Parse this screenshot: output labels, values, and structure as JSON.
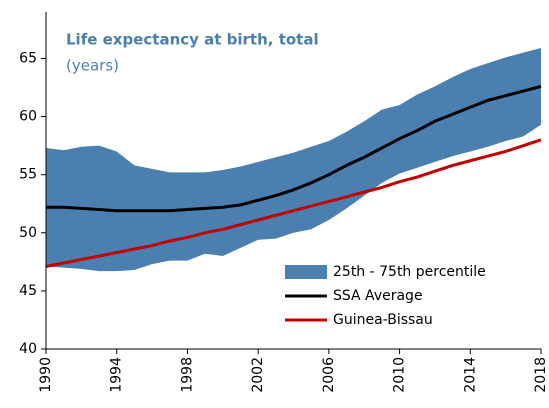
{
  "chart_data": {
    "type": "line",
    "title": "Life expectancy at birth, total",
    "subtitle": "(years)",
    "x": [
      1990,
      1991,
      1992,
      1993,
      1994,
      1995,
      1996,
      1997,
      1998,
      1999,
      2000,
      2001,
      2002,
      2003,
      2004,
      2005,
      2006,
      2007,
      2008,
      2009,
      2010,
      2011,
      2012,
      2013,
      2014,
      2015,
      2016,
      2017,
      2018
    ],
    "band": {
      "name": "25th - 75th percentile",
      "color": "#4a7fb0",
      "upper": [
        57.3,
        57.1,
        57.4,
        57.5,
        57.0,
        55.8,
        55.5,
        55.2,
        55.2,
        55.2,
        55.4,
        55.7,
        56.1,
        56.5,
        56.9,
        57.4,
        57.9,
        58.7,
        59.6,
        60.6,
        61.0,
        61.9,
        62.6,
        63.4,
        64.1,
        64.6,
        65.1,
        65.5,
        65.9
      ],
      "lower": [
        47.1,
        47.0,
        46.9,
        46.7,
        46.7,
        46.8,
        47.3,
        47.6,
        47.6,
        48.2,
        48.0,
        48.7,
        49.4,
        49.5,
        50.0,
        50.3,
        51.1,
        52.1,
        53.2,
        54.3,
        55.1,
        55.6,
        56.1,
        56.6,
        57.0,
        57.4,
        57.9,
        58.3,
        59.3
      ]
    },
    "series": [
      {
        "name": "SSA Average",
        "color": "#000000",
        "values": [
          52.2,
          52.2,
          52.1,
          52.0,
          51.9,
          51.9,
          51.9,
          51.9,
          52.0,
          52.1,
          52.2,
          52.4,
          52.8,
          53.2,
          53.7,
          54.3,
          55.0,
          55.8,
          56.5,
          57.3,
          58.1,
          58.8,
          59.6,
          60.2,
          60.8,
          61.4,
          61.8,
          62.2,
          62.6
        ]
      },
      {
        "name": "Guinea-Bissau",
        "color": "#c00000",
        "values": [
          47.1,
          47.4,
          47.7,
          48.0,
          48.3,
          48.6,
          48.9,
          49.3,
          49.6,
          50.0,
          50.3,
          50.7,
          51.1,
          51.5,
          51.9,
          52.3,
          52.7,
          53.1,
          53.5,
          53.9,
          54.4,
          54.8,
          55.3,
          55.8,
          56.2,
          56.6,
          57.0,
          57.5,
          58.0
        ]
      }
    ],
    "xlim": [
      1990,
      2018
    ],
    "xticks": [
      1990,
      1994,
      1998,
      2002,
      2006,
      2010,
      2014,
      2018
    ],
    "ylim": [
      40,
      69
    ],
    "yticks": [
      40,
      45,
      50,
      55,
      60,
      65
    ],
    "legend": "lower-right"
  }
}
